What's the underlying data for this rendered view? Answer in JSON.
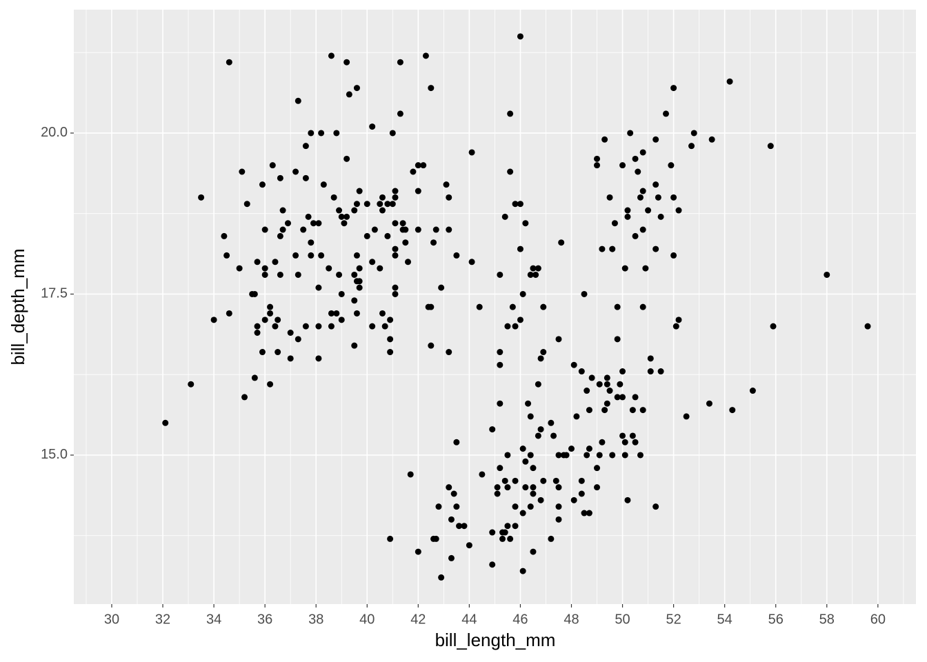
{
  "chart_data": {
    "type": "scatter",
    "x_label": "bill_length_mm",
    "y_label": "bill_depth_mm",
    "color": "#000000",
    "grid": true,
    "panel_color": "#ebebeb",
    "xlim": [
      28.515,
      61.49
    ],
    "ylim": [
      12.687,
      21.916
    ],
    "xticks": [
      30,
      32,
      34,
      36,
      38,
      40,
      42,
      44,
      46,
      48,
      50,
      52,
      54,
      56,
      58,
      60
    ],
    "yticks": [
      {
        "value": 15,
        "label": "15.0"
      },
      {
        "value": 17.5,
        "label": "17.5"
      },
      {
        "value": 20,
        "label": "20.0"
      }
    ],
    "minor_xticks": [
      29,
      31,
      33,
      35,
      37,
      39,
      41,
      43,
      45,
      47,
      49,
      51,
      53,
      55,
      57,
      59,
      61
    ],
    "minor_yticks": [
      13.75,
      16.25,
      18.75,
      21.25
    ],
    "x": [
      46.0,
      38.6,
      42.3,
      34.6,
      39.2,
      41.3,
      54.2,
      39.6,
      42.5,
      52.0,
      39.3,
      37.3,
      41.3,
      45.6,
      51.7,
      40.2,
      37.8,
      38.2,
      38.8,
      41.0,
      50.3,
      52.8,
      49.3,
      51.3,
      53.5,
      37.6,
      52.7,
      55.8,
      44.1,
      50.8,
      39.2,
      49.0,
      50.5,
      36.3,
      42.0,
      42.2,
      49.0,
      50.0,
      51.9,
      35.1,
      37.2,
      41.8,
      45.6,
      50.6,
      36.6,
      37.6,
      35.9,
      38.3,
      43.1,
      51.3,
      39.7,
      41.1,
      42.0,
      50.8,
      33.5,
      38.7,
      40.6,
      41.1,
      43.2,
      49.5,
      50.7,
      51.4,
      52.0,
      35.3,
      39.6,
      40.0,
      40.5,
      40.8,
      41.0,
      45.8,
      46.0,
      36.7,
      38.9,
      39.5,
      40.6,
      50.2,
      51.0,
      52.2,
      37.7,
      39.0,
      39.2,
      45.4,
      50.2,
      51.5,
      36.9,
      37.9,
      38.1,
      39.1,
      41.1,
      41.4,
      46.2,
      49.7,
      36.0,
      36.7,
      37.5,
      40.3,
      41.4,
      41.5,
      42.0,
      42.7,
      43.2,
      50.8,
      34.4,
      36.6,
      40.0,
      40.8,
      50.5,
      37.8,
      41.5,
      42.6,
      47.6,
      41.1,
      46.0,
      49.2,
      49.6,
      51.3,
      34.5,
      37.2,
      37.8,
      38.2,
      39.6,
      41.1,
      43.5,
      52.0,
      35.7,
      36.4,
      40.2,
      41.6,
      44.1,
      35.0,
      36.0,
      38.5,
      39.7,
      40.5,
      46.5,
      46.7,
      50.1,
      50.9,
      36.0,
      36.6,
      37.3,
      38.9,
      39.5,
      45.2,
      46.4,
      46.6,
      58.0,
      39.6,
      39.7,
      38.1,
      39.7,
      41.1,
      42.9,
      35.5,
      35.6,
      39.0,
      41.1,
      46.1,
      48.5,
      39.5,
      36.2,
      42.4,
      42.5,
      44.4,
      45.7,
      46.9,
      49.8,
      50.8,
      34.6,
      36.2,
      38.6,
      38.8,
      39.6,
      40.6,
      34.0,
      36.0,
      36.5,
      39.0,
      40.9,
      46.0,
      52.2,
      35.7,
      36.4,
      37.6,
      38.1,
      38.6,
      40.2,
      40.7,
      45.5,
      45.8,
      52.1,
      55.9,
      59.6,
      35.7,
      37.0,
      37.3,
      40.9,
      47.5,
      49.8,
      39.5,
      42.5,
      35.9,
      36.5,
      40.9,
      43.2,
      45.2,
      46.9,
      37.0,
      38.1,
      46.8,
      51.1,
      45.2,
      48.1,
      48.4,
      50.0,
      51.1,
      51.5,
      35.6,
      48.8,
      49.4,
      33.1,
      36.2,
      46.7,
      49.1,
      49.4,
      49.9,
      48.6,
      49.5,
      55.1,
      35.2,
      49.8,
      50.0,
      50.5,
      45.2,
      46.3,
      49.4,
      53.4,
      48.7,
      49.3,
      50.4,
      50.8,
      54.3,
      46.4,
      48.2,
      52.5,
      32.1,
      47.2,
      44.9,
      46.8,
      46.7,
      47.3,
      50.0,
      50.4,
      43.5,
      49.2,
      50.1,
      50.5,
      46.1,
      48.0,
      48.7,
      45.5,
      46.4,
      47.5,
      47.7,
      47.8,
      48.6,
      49.1,
      49.6,
      50.1,
      50.7,
      46.2,
      45.2,
      46.5,
      49.0,
      41.7,
      44.5,
      45.4,
      45.8,
      46.9,
      47.4,
      48.4,
      43.2,
      45.1,
      45.5,
      46.2,
      46.5,
      47.5,
      49.0,
      43.4,
      45.1,
      46.5,
      48.4,
      46.8,
      48.1,
      50.2,
      42.8,
      43.5,
      45.8,
      46.4,
      47.5,
      51.3,
      46.1,
      48.5,
      48.7,
      43.3,
      47.5,
      43.6,
      43.8,
      45.5,
      45.8,
      44.9,
      45.3,
      45.4,
      40.9,
      42.6,
      42.7,
      45.3,
      45.6,
      47.2,
      44.0,
      42.0,
      46.5,
      43.3,
      44.9,
      46.1,
      42.9
    ],
    "values": [
      21.5,
      21.2,
      21.2,
      21.1,
      21.1,
      21.1,
      20.8,
      20.7,
      20.7,
      20.7,
      20.6,
      20.5,
      20.3,
      20.3,
      20.3,
      20.1,
      20.0,
      20.0,
      20.0,
      20.0,
      20.0,
      20.0,
      19.9,
      19.9,
      19.9,
      19.8,
      19.8,
      19.8,
      19.7,
      19.7,
      19.6,
      19.6,
      19.6,
      19.5,
      19.5,
      19.5,
      19.5,
      19.5,
      19.5,
      19.4,
      19.4,
      19.4,
      19.4,
      19.4,
      19.3,
      19.3,
      19.2,
      19.2,
      19.2,
      19.2,
      19.1,
      19.1,
      19.1,
      19.1,
      19.0,
      19.0,
      19.0,
      19.0,
      19.0,
      19.0,
      19.0,
      19.0,
      19.0,
      18.9,
      18.9,
      18.9,
      18.9,
      18.9,
      18.9,
      18.9,
      18.9,
      18.8,
      18.8,
      18.8,
      18.8,
      18.8,
      18.8,
      18.8,
      18.7,
      18.7,
      18.7,
      18.7,
      18.7,
      18.7,
      18.6,
      18.6,
      18.6,
      18.6,
      18.6,
      18.6,
      18.6,
      18.6,
      18.5,
      18.5,
      18.5,
      18.5,
      18.5,
      18.5,
      18.5,
      18.5,
      18.5,
      18.5,
      18.4,
      18.4,
      18.4,
      18.4,
      18.4,
      18.3,
      18.3,
      18.3,
      18.3,
      18.2,
      18.2,
      18.2,
      18.2,
      18.2,
      18.1,
      18.1,
      18.1,
      18.1,
      18.1,
      18.1,
      18.1,
      18.1,
      18.0,
      18.0,
      18.0,
      18.0,
      18.0,
      17.9,
      17.9,
      17.9,
      17.9,
      17.9,
      17.9,
      17.9,
      17.9,
      17.9,
      17.8,
      17.8,
      17.8,
      17.8,
      17.8,
      17.8,
      17.8,
      17.8,
      17.8,
      17.7,
      17.7,
      17.6,
      17.6,
      17.6,
      17.6,
      17.5,
      17.5,
      17.5,
      17.5,
      17.5,
      17.5,
      17.4,
      17.3,
      17.3,
      17.3,
      17.3,
      17.3,
      17.3,
      17.3,
      17.3,
      17.2,
      17.2,
      17.2,
      17.2,
      17.2,
      17.2,
      17.1,
      17.1,
      17.1,
      17.1,
      17.1,
      17.1,
      17.1,
      17.0,
      17.0,
      17.0,
      17.0,
      17.0,
      17.0,
      17.0,
      17.0,
      17.0,
      17.0,
      17.0,
      17.0,
      16.9,
      16.9,
      16.8,
      16.8,
      16.8,
      16.8,
      16.7,
      16.7,
      16.6,
      16.6,
      16.6,
      16.6,
      16.6,
      16.6,
      16.5,
      16.5,
      16.5,
      16.5,
      16.4,
      16.4,
      16.3,
      16.3,
      16.3,
      16.3,
      16.2,
      16.2,
      16.2,
      16.1,
      16.1,
      16.1,
      16.1,
      16.1,
      16.1,
      16.0,
      16.0,
      16.0,
      15.9,
      15.9,
      15.9,
      15.9,
      15.8,
      15.8,
      15.8,
      15.8,
      15.7,
      15.7,
      15.7,
      15.7,
      15.7,
      15.6,
      15.6,
      15.6,
      15.5,
      15.5,
      15.4,
      15.4,
      15.3,
      15.3,
      15.3,
      15.3,
      15.2,
      15.2,
      15.2,
      15.2,
      15.1,
      15.1,
      15.1,
      15.0,
      15.0,
      15.0,
      15.0,
      15.0,
      15.0,
      15.0,
      15.0,
      15.0,
      15.0,
      14.9,
      14.8,
      14.8,
      14.8,
      14.7,
      14.7,
      14.6,
      14.6,
      14.6,
      14.6,
      14.6,
      14.5,
      14.5,
      14.5,
      14.5,
      14.5,
      14.5,
      14.5,
      14.4,
      14.4,
      14.4,
      14.4,
      14.3,
      14.3,
      14.3,
      14.2,
      14.2,
      14.2,
      14.2,
      14.2,
      14.2,
      14.1,
      14.1,
      14.1,
      14.0,
      14.0,
      13.9,
      13.9,
      13.9,
      13.9,
      13.8,
      13.8,
      13.8,
      13.7,
      13.7,
      13.7,
      13.7,
      13.7,
      13.7,
      13.6,
      13.5,
      13.5,
      13.4,
      13.3,
      13.2,
      13.1
    ]
  }
}
